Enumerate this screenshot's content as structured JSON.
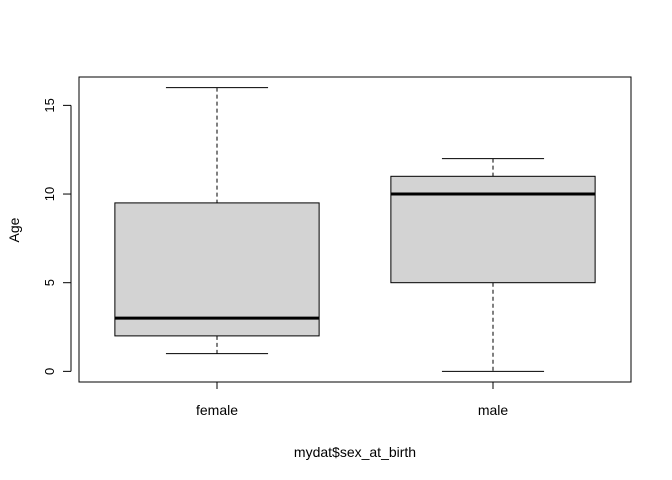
{
  "chart_data": {
    "type": "boxplot",
    "title": "",
    "xlabel": "mydat$sex_at_birth",
    "ylabel": "Age",
    "ylim": [
      -0.6,
      16.6
    ],
    "yticks": [
      0,
      5,
      10,
      15
    ],
    "grid": false,
    "box_color": "#d3d3d3",
    "groups": [
      {
        "label": "female",
        "whisker_low": 1,
        "q1": 2,
        "median": 3,
        "q3": 9.5,
        "whisker_high": 16
      },
      {
        "label": "male",
        "whisker_low": 0,
        "q1": 5,
        "median": 10,
        "q3": 11,
        "whisker_high": 12
      }
    ]
  }
}
